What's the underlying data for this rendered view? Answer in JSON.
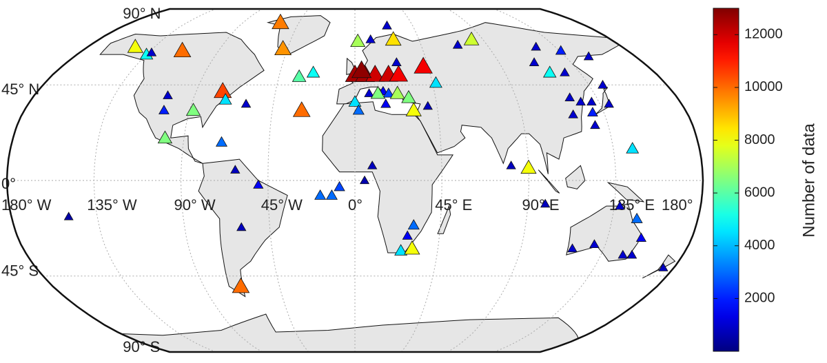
{
  "chart_data": {
    "type": "scatter",
    "projection": "robinson",
    "xlim": [
      -180,
      180
    ],
    "ylim": [
      -90,
      90
    ],
    "xticks": [
      {
        "value": -180,
        "label": "180° W"
      },
      {
        "value": -135,
        "label": "135° W"
      },
      {
        "value": -90,
        "label": "90° W"
      },
      {
        "value": -45,
        "label": "45° W"
      },
      {
        "value": 0,
        "label": "0°"
      },
      {
        "value": 45,
        "label": "45° E"
      },
      {
        "value": 90,
        "label": "90° E"
      },
      {
        "value": 135,
        "label": "135° E"
      },
      {
        "value": 180,
        "label": "180°"
      }
    ],
    "yticks": [
      {
        "value": -90,
        "label": "90° S"
      },
      {
        "value": -45,
        "label": "45° S"
      },
      {
        "value": 0,
        "label": "0°"
      },
      {
        "value": 45,
        "label": "45° N"
      },
      {
        "value": 90,
        "label": "90° N"
      }
    ],
    "grid": true,
    "colormap": "jet",
    "clim": [
      0,
      13000
    ],
    "colorbar_ticks": [
      2000,
      4000,
      6000,
      8000,
      10000,
      12000
    ],
    "colorbar_label": "Number of data",
    "x": [
      -150,
      -148,
      -135,
      -133,
      -114,
      -105,
      -104,
      -100,
      -88,
      -75,
      -72,
      -70,
      -62,
      -60,
      -68,
      -50,
      -60,
      -48,
      -33,
      -25,
      -29,
      -60,
      -18,
      -12,
      -8,
      2,
      27,
      25,
      11,
      0,
      6,
      12,
      20,
      26,
      42,
      4,
      26,
      16,
      8,
      19,
      13,
      24,
      30,
      0,
      2,
      17,
      32,
      40,
      47,
      70,
      82,
      122,
      136,
      150,
      117,
      126,
      112,
      143,
      120,
      125,
      131,
      140,
      129,
      118,
      128,
      145,
      90,
      81,
      9,
      5,
      31,
      28,
      25,
      31,
      99,
      118,
      129,
      138,
      148,
      153,
      152,
      147,
      174
    ],
    "y": [
      -17,
      64,
      60,
      61,
      62,
      40,
      33,
      20,
      33,
      42,
      38,
      18,
      5,
      -22,
      -50,
      -2,
      78,
      63,
      49,
      51,
      33,
      36,
      -7,
      -7,
      -3,
      67,
      68,
      76,
      68,
      50,
      50,
      50,
      50,
      50,
      54,
      52,
      56,
      42,
      41,
      41,
      41,
      41,
      39,
      37,
      33,
      36,
      33,
      35,
      46,
      65,
      68,
      64,
      62,
      59,
      51,
      51,
      56,
      45,
      39,
      37,
      37,
      36,
      32,
      31,
      26,
      15,
      6,
      7,
      7,
      0,
      -21,
      -26,
      -33,
      -32,
      -11,
      -32,
      -30,
      -12,
      -18,
      -27,
      -35,
      -35,
      -41
    ],
    "values": [
      500,
      8000,
      5000,
      1000,
      10000,
      1000,
      2000,
      6500,
      6500,
      10500,
      4500,
      3000,
      800,
      800,
      10000,
      1500,
      9800,
      9500,
      6000,
      5000,
      10000,
      1000,
      3000,
      3000,
      2500,
      7000,
      8500,
      1000,
      1000,
      12500,
      12500,
      12000,
      12000,
      11500,
      11500,
      12800,
      1000,
      1500,
      1000,
      2500,
      6500,
      7000,
      6500,
      4500,
      3000,
      1500,
      8000,
      800,
      4500,
      1000,
      7500,
      1000,
      2000,
      1000,
      5000,
      1000,
      1000,
      1000,
      1000,
      1000,
      1000,
      1000,
      2000,
      1000,
      1000,
      4500,
      8000,
      800,
      800,
      600,
      3000,
      1500,
      4500,
      8000,
      800,
      1000,
      1000,
      1000,
      3000,
      1500,
      1000,
      1000,
      800
    ]
  }
}
